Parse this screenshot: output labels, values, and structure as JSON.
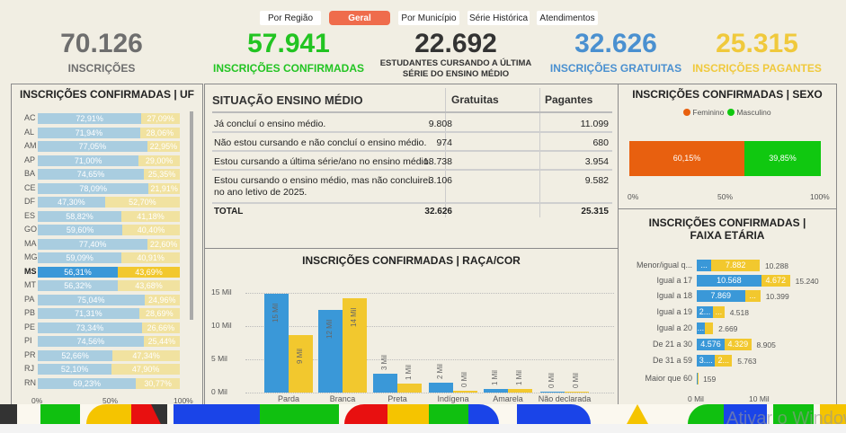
{
  "nav": {
    "tabs": [
      {
        "label": "Por Região",
        "active": false
      },
      {
        "label": "Geral",
        "active": true
      },
      {
        "label": "Por Município",
        "active": false
      },
      {
        "label": "Série Histórica",
        "active": false
      },
      {
        "label": "Atendimentos",
        "active": false
      }
    ]
  },
  "kpis": [
    {
      "value": "70.126",
      "label": "INSCRIÇÕES",
      "color": "#6e6e6e"
    },
    {
      "value": "57.941",
      "label": "INSCRIÇÕES CONFIRMADAS",
      "color": "#22c422"
    },
    {
      "value": "22.692",
      "label": "ESTUDANTES CURSANDO A ÚLTIMA SÉRIE DO ENSINO MÉDIO",
      "color": "#333333"
    },
    {
      "value": "32.626",
      "label": "INSCRIÇÕES GRATUITAS",
      "color": "#4a90d0"
    },
    {
      "value": "25.315",
      "label": "INSCRIÇÕES PAGANTES",
      "color": "#f0c93c"
    }
  ],
  "colors": {
    "gratuitas": "#3a98d8",
    "pagantes": "#f2c82e",
    "gratuitas_light": "#a9cde0",
    "pagantes_light": "#f1e2a0",
    "feminino": "#e8600f",
    "masculino": "#10c810"
  },
  "uf_chart": {
    "title": "INSCRIÇÕES CONFIRMADAS | UF",
    "type": "bar",
    "stacked": "100%",
    "highlight": "MS",
    "categories": [
      "AC",
      "AL",
      "AM",
      "AP",
      "BA",
      "CE",
      "DF",
      "ES",
      "GO",
      "MA",
      "MG",
      "MS",
      "MT",
      "PA",
      "PB",
      "PE",
      "PI",
      "PR",
      "RJ",
      "RN"
    ],
    "gratuitas": [
      "72,91%",
      "71,94%",
      "77,05%",
      "71,00%",
      "74,65%",
      "78,09%",
      "47,30%",
      "58,82%",
      "59,60%",
      "77,40%",
      "59,09%",
      "56,31%",
      "56,32%",
      "75,04%",
      "71,31%",
      "73,34%",
      "74,56%",
      "52,66%",
      "52,10%",
      "69,23%"
    ],
    "pagantes": [
      "27,09%",
      "28,06%",
      "22,95%",
      "29,00%",
      "25,35%",
      "21,91%",
      "52,70%",
      "41,18%",
      "40,40%",
      "22,60%",
      "40,91%",
      "43,69%",
      "43,68%",
      "24,96%",
      "28,69%",
      "26,66%",
      "25,44%",
      "47,34%",
      "47,90%",
      "30,77%"
    ],
    "xticks": [
      "0%",
      "50%",
      "100%"
    ]
  },
  "table": {
    "title": "SITUAÇÃO ENSINO MÉDIO",
    "col1": "Gratuitas",
    "col2": "Pagantes",
    "rows": [
      {
        "label": "Já concluí o ensino médio.",
        "g": "9.808",
        "p": "11.099"
      },
      {
        "label": "Não estou cursando e não concluí o ensino médio.",
        "g": "974",
        "p": "680"
      },
      {
        "label": "Estou cursando a última série/ano no ensino médio.",
        "g": "18.738",
        "p": "3.954"
      },
      {
        "label": "Estou cursando o ensino médio, mas não concluirei no ano letivo de 2025.",
        "g": "3.106",
        "p": "9.582"
      }
    ],
    "total": {
      "label": "TOTAL",
      "g": "32.626",
      "p": "25.315"
    }
  },
  "chart_data": [
    {
      "type": "bar",
      "title": "INSCRIÇÕES CONFIRMADAS | RAÇA/COR",
      "categories": [
        "Parda",
        "Branca",
        "Preta",
        "Indígena",
        "Amarela",
        "Não declarada"
      ],
      "yticks": [
        "0 Mil",
        "5 Mil",
        "10 Mil",
        "15 Mil"
      ],
      "ylim": [
        0,
        15
      ],
      "grid": true,
      "series": [
        {
          "values": [
            14.8,
            12.4,
            2.9,
            1.5,
            0.5,
            0.2
          ],
          "labels": [
            "15 Mil",
            "12 Mil",
            "3 Mil",
            "2 Mil",
            "1 Mil",
            "0 Mil"
          ]
        },
        {
          "values": [
            8.6,
            14.2,
            1.3,
            0.3,
            0.5,
            0.2
          ],
          "labels": [
            "9 Mil",
            "14 Mil",
            "1 Mil",
            "0 Mil",
            "1 Mil",
            "0 Mil"
          ]
        }
      ]
    },
    {
      "type": "bar",
      "orientation": "horizontal",
      "stacked": "100%",
      "title": "INSCRIÇÕES CONFIRMADAS | SEXO",
      "legend": [
        "Feminino",
        "Masculino"
      ],
      "legend_position": "top",
      "values": [
        60.15,
        39.85
      ],
      "labels": [
        "60,15%",
        "39,85%"
      ],
      "xticks": [
        "0%",
        "50%",
        "100%"
      ]
    },
    {
      "type": "bar",
      "orientation": "horizontal",
      "stacked": true,
      "title": "INSCRIÇÕES CONFIRMADAS | FAIXA ETÁRIA",
      "xticks": [
        "0 Mil",
        "10 Mil"
      ],
      "categories": [
        "Menor/igual q...",
        "Igual a 17",
        "Igual a 18",
        "Igual a 19",
        "Igual a 20",
        "De 21 a 30",
        "De 31 a 59",
        "Maior que 60"
      ],
      "gratuitas": [
        2406,
        10568,
        7869,
        2650,
        1300,
        4576,
        3000,
        80
      ],
      "pagantes": [
        7882,
        4672,
        2530,
        1868,
        1369,
        4329,
        2763,
        79
      ],
      "gratuitas_labels": [
        "...",
        "10.568",
        "7.869",
        "2...",
        "...",
        "4.576",
        "3....",
        ""
      ],
      "pagantes_labels": [
        "7.882",
        "4.672",
        "...",
        "...",
        "",
        "4.329",
        "2...",
        ""
      ],
      "totals": [
        "10.288",
        "15.240",
        "10.399",
        "4.518",
        "2.669",
        "8.905",
        "5.763",
        "159"
      ]
    }
  ],
  "watermark": "Ativar o Windows"
}
